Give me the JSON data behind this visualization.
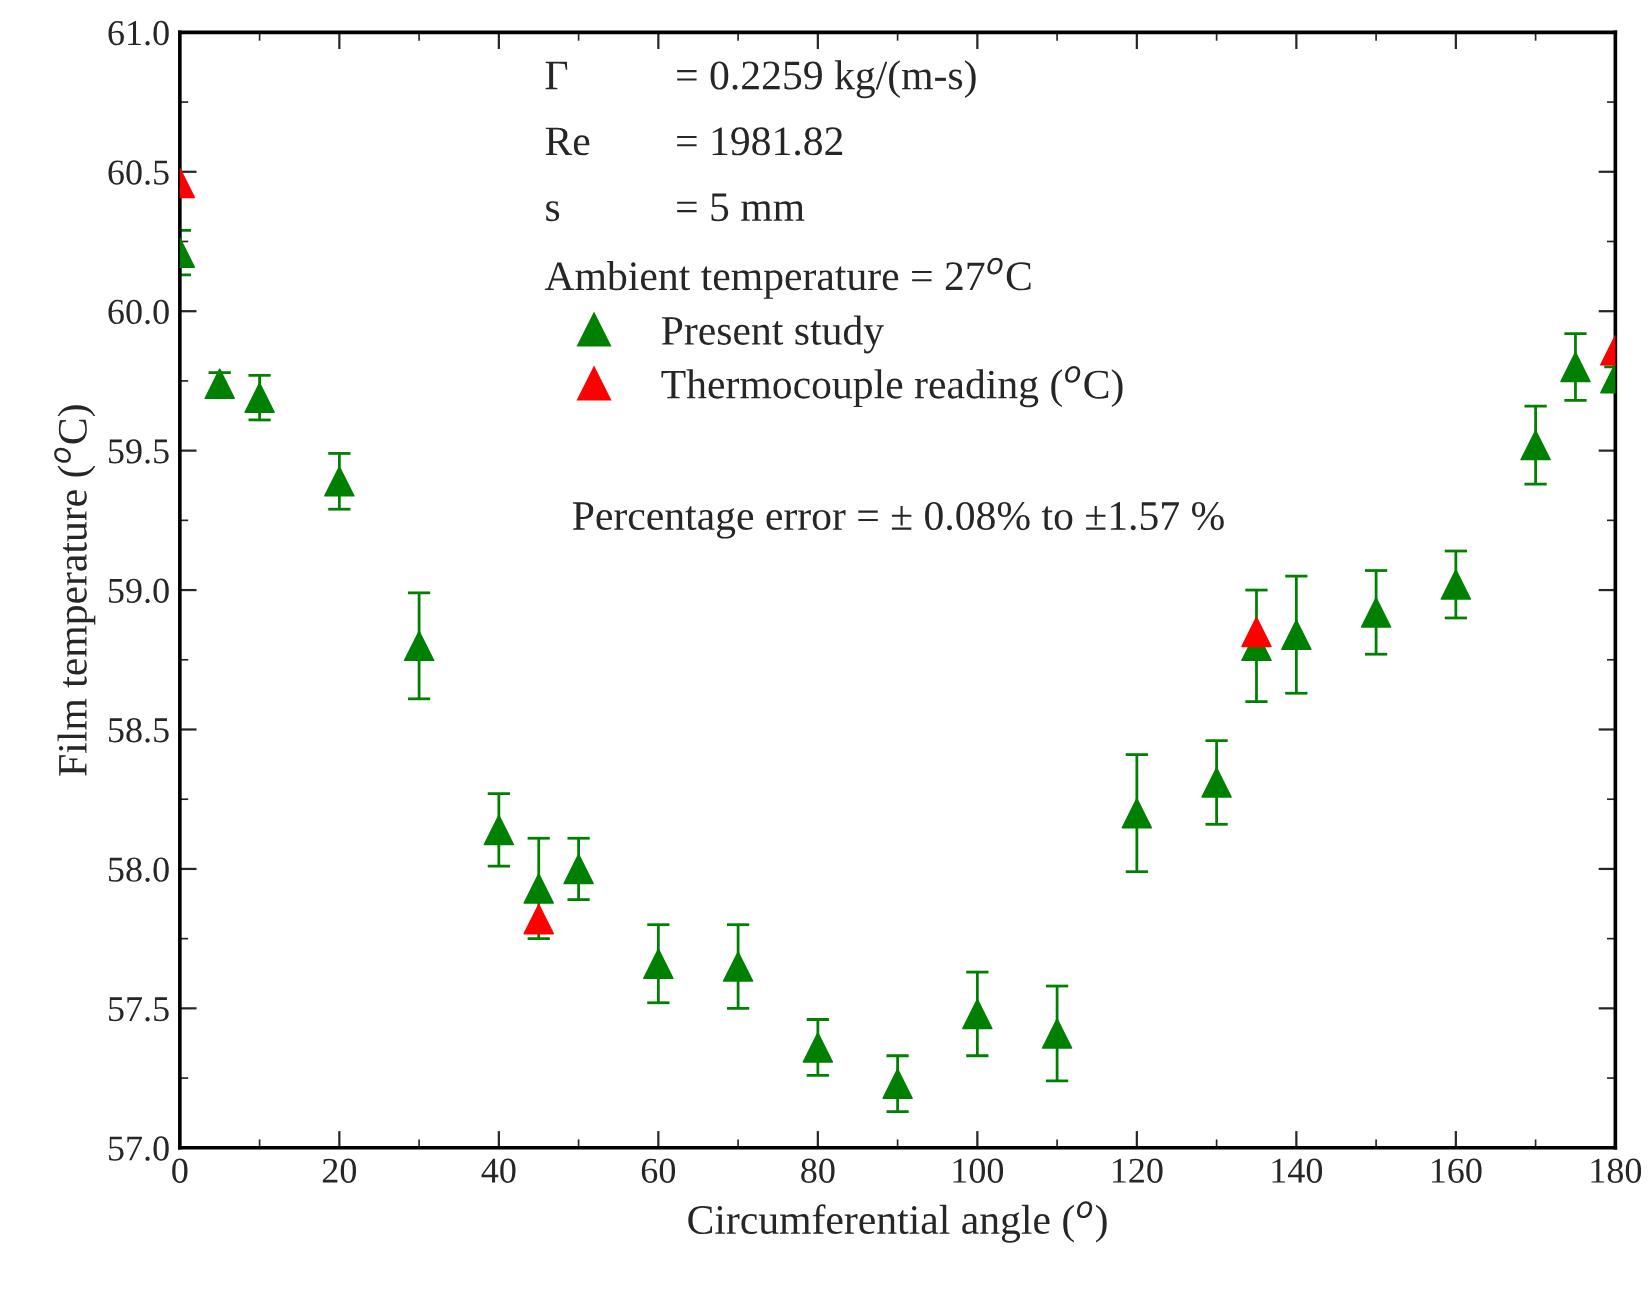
{
  "chart_data": {
    "type": "scatter",
    "xlabel": "Circumferential angle ($^{o}$)",
    "ylabel": "Film temperature ($^{o}$C)",
    "xlim": [
      0,
      180
    ],
    "xticks": [
      0,
      20,
      40,
      60,
      80,
      100,
      120,
      140,
      160,
      180
    ],
    "ylim": [
      57.0,
      61.0
    ],
    "yticks": [
      {
        "value": 57,
        "label": "57.0"
      },
      57.5,
      {
        "value": 58,
        "label": "58.0"
      },
      58.5,
      {
        "value": 59,
        "label": "59.0"
      },
      59.5,
      {
        "value": 60,
        "label": "60.0"
      },
      60.5,
      {
        "value": 61,
        "label": "61.0"
      }
    ],
    "marker": "triangle",
    "grid": false,
    "legend": "top",
    "series": [
      {
        "name": "Present study",
        "color": "#008000",
        "x": [
          0,
          5,
          10,
          20,
          30,
          40,
          45,
          50,
          60,
          70,
          80,
          90,
          100,
          110,
          120,
          130,
          135,
          140,
          150,
          160,
          170,
          175,
          180
        ],
        "values": [
          60.21,
          59.74,
          59.69,
          59.39,
          58.8,
          58.14,
          57.93,
          58.0,
          57.66,
          57.65,
          57.36,
          57.23,
          57.48,
          57.41,
          58.2,
          58.31,
          58.8,
          58.84,
          58.92,
          59.02,
          59.52,
          59.8,
          59.76
        ],
        "errors": [
          0.08,
          0.04,
          0.08,
          0.1,
          0.19,
          0.13,
          0.18,
          0.11,
          0.14,
          0.15,
          0.1,
          0.1,
          0.15,
          0.17,
          0.21,
          0.15,
          0.2,
          0.21,
          0.15,
          0.12,
          0.14,
          0.12,
          0.04
        ]
      },
      {
        "name": "Thermocouple reading ($^{o}$C)",
        "color": "#ff0000",
        "x": [
          0,
          45,
          135,
          180
        ],
        "values": [
          60.46,
          57.82,
          58.85,
          59.86
        ]
      }
    ],
    "annotations": [
      "Γ",
      "= 0.2259 kg/(m-s)",
      "Re",
      "= 1981.82",
      "s",
      "= 5 mm",
      "Ambient temperature = 27$^{o}$C",
      "Percentage error = ± 0.08% to ±1.57 %"
    ]
  }
}
